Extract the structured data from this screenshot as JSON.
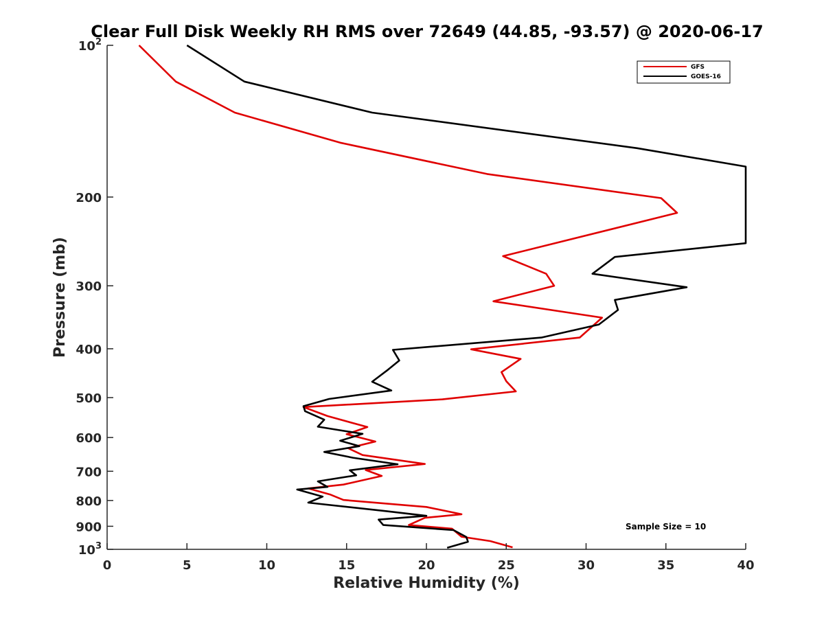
{
  "chart_data": {
    "type": "line",
    "title": "Clear Full Disk Weekly RH RMS over 72649 (44.85, -93.57) @ 2020-06-17",
    "xlabel": "Relative Humidity (%)",
    "ylabel": "Pressure (mb)",
    "xlim": [
      0,
      40
    ],
    "ylim": [
      100,
      1000
    ],
    "yscale": "log",
    "y_reversed": true,
    "grid": false,
    "legend_position": "top-right",
    "annotation": "Sample Size = 10",
    "x_ticks": [
      0,
      5,
      10,
      15,
      20,
      25,
      30,
      35,
      40
    ],
    "y_ticks": [
      {
        "value": 100,
        "base": "10",
        "exp": "2"
      },
      {
        "value": 200,
        "label": "200"
      },
      {
        "value": 300,
        "label": "300"
      },
      {
        "value": 400,
        "label": "400"
      },
      {
        "value": 500,
        "label": "500"
      },
      {
        "value": 600,
        "label": "600"
      },
      {
        "value": 700,
        "label": "700"
      },
      {
        "value": 800,
        "label": "800"
      },
      {
        "value": 900,
        "label": "900"
      },
      {
        "value": 1000,
        "base": "10",
        "exp": "3"
      }
    ],
    "series": [
      {
        "name": "GFS",
        "color": "#e00000",
        "points": [
          [
            2.0,
            100
          ],
          [
            4.3,
            118
          ],
          [
            8.0,
            136
          ],
          [
            14.6,
            156
          ],
          [
            23.8,
            180
          ],
          [
            34.7,
            201
          ],
          [
            35.7,
            215
          ],
          [
            24.8,
            262
          ],
          [
            27.5,
            284
          ],
          [
            28.0,
            300
          ],
          [
            24.2,
            322
          ],
          [
            31.0,
            347
          ],
          [
            29.6,
            380
          ],
          [
            22.8,
            401
          ],
          [
            25.9,
            419
          ],
          [
            24.7,
            445
          ],
          [
            25.0,
            464
          ],
          [
            25.6,
            486
          ],
          [
            21.0,
            504
          ],
          [
            12.3,
            522
          ],
          [
            13.8,
            544
          ],
          [
            16.3,
            572
          ],
          [
            15.0,
            591
          ],
          [
            16.8,
            611
          ],
          [
            15.1,
            630
          ],
          [
            16.0,
            650
          ],
          [
            19.9,
            677
          ],
          [
            16.2,
            696
          ],
          [
            17.2,
            715
          ],
          [
            14.8,
            744
          ],
          [
            12.6,
            757
          ],
          [
            14.0,
            779
          ],
          [
            14.8,
            798
          ],
          [
            20.0,
            824
          ],
          [
            22.2,
            852
          ],
          [
            19.9,
            866
          ],
          [
            18.9,
            895
          ],
          [
            21.6,
            910
          ],
          [
            22.2,
            944
          ],
          [
            24.0,
            963
          ],
          [
            25.4,
            991
          ]
        ]
      },
      {
        "name": "GOES-16",
        "color": "#000000",
        "points": [
          [
            5.0,
            100
          ],
          [
            8.6,
            118
          ],
          [
            16.6,
            136
          ],
          [
            33.2,
            160
          ],
          [
            40.0,
            174
          ],
          [
            40.0,
            247
          ],
          [
            31.8,
            263
          ],
          [
            30.4,
            284
          ],
          [
            36.3,
            302
          ],
          [
            31.8,
            320
          ],
          [
            32.0,
            335
          ],
          [
            30.8,
            358
          ],
          [
            27.2,
            380
          ],
          [
            17.9,
            402
          ],
          [
            18.3,
            422
          ],
          [
            17.6,
            440
          ],
          [
            16.6,
            465
          ],
          [
            17.8,
            484
          ],
          [
            13.9,
            503
          ],
          [
            12.3,
            520
          ],
          [
            12.4,
            532
          ],
          [
            13.6,
            553
          ],
          [
            13.2,
            571
          ],
          [
            16.0,
            590
          ],
          [
            14.6,
            609
          ],
          [
            15.8,
            624
          ],
          [
            13.6,
            641
          ],
          [
            15.4,
            658
          ],
          [
            18.2,
            678
          ],
          [
            15.2,
            697
          ],
          [
            15.6,
            713
          ],
          [
            13.2,
            733
          ],
          [
            13.8,
            752
          ],
          [
            11.9,
            761
          ],
          [
            13.5,
            786
          ],
          [
            12.6,
            808
          ],
          [
            17.5,
            840
          ],
          [
            20.0,
            858
          ],
          [
            17.0,
            873
          ],
          [
            17.3,
            895
          ],
          [
            21.7,
            916
          ],
          [
            22.5,
            945
          ],
          [
            22.6,
            966
          ],
          [
            21.3,
            993
          ]
        ]
      }
    ]
  }
}
